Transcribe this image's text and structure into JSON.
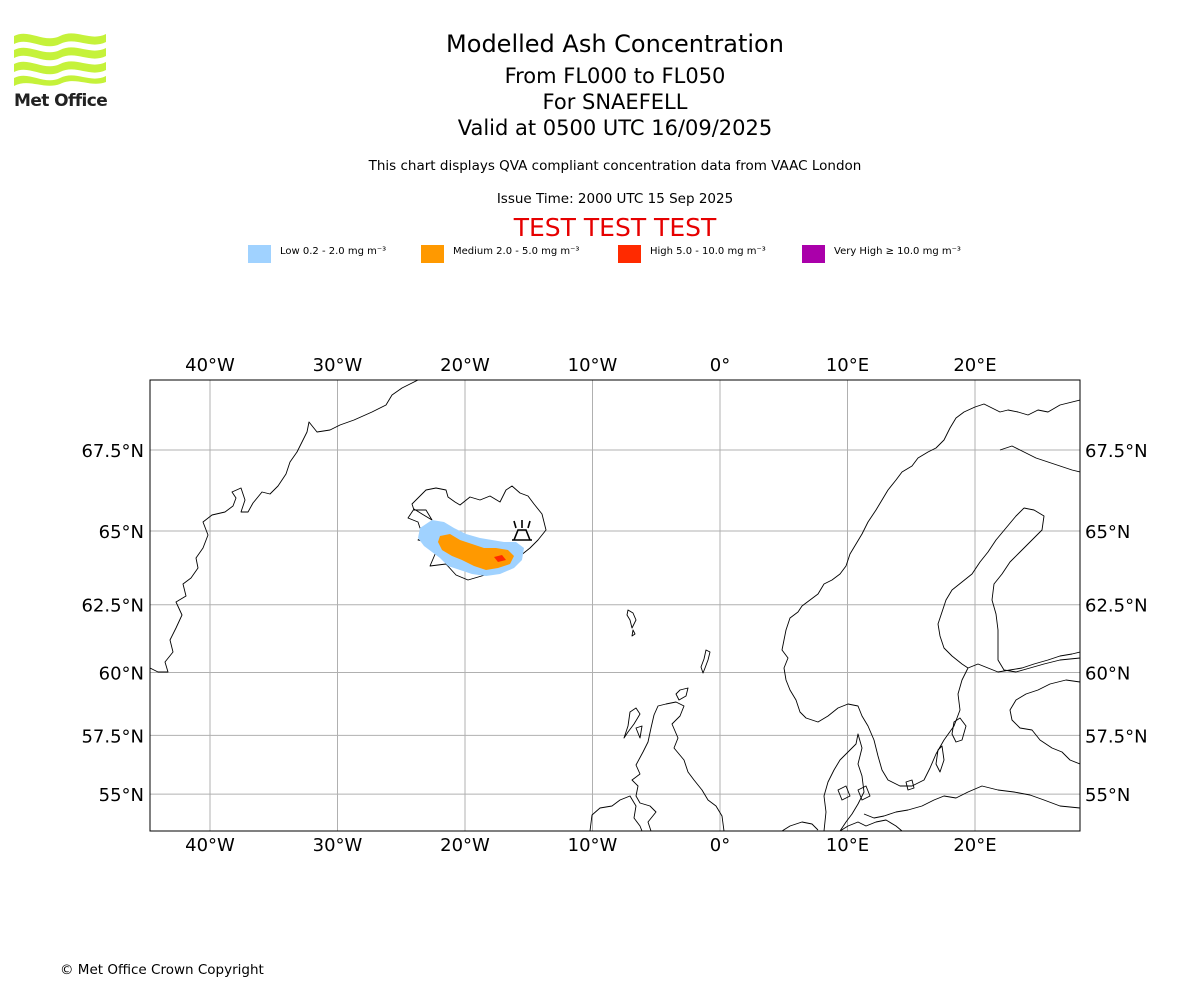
{
  "logo": {
    "text": "Met Office"
  },
  "header": {
    "title": "Modelled Ash Concentration",
    "levels": "From FL000 to FL050",
    "volcano": "For SNAEFELL",
    "valid": "Valid at 0500 UTC 16/09/2025",
    "description": "This chart displays QVA compliant concentration data from VAAC London",
    "issue_time": "Issue Time: 2000 UTC 15 Sep 2025",
    "test_banner": "TEST TEST TEST"
  },
  "legend": [
    {
      "label": "Low 0.2 - 2.0 mg m⁻³",
      "color": "#a0d2ff"
    },
    {
      "label": "Medium 2.0 - 5.0 mg m⁻³",
      "color": "#ff9900"
    },
    {
      "label": "High 5.0 - 10.0 mg m⁻³",
      "color": "#ff2a00"
    },
    {
      "label": "Very High ≥ 10.0 mg m⁻³",
      "color": "#aa00aa"
    }
  ],
  "map": {
    "extent": {
      "lon_min": -44.7,
      "lon_max": 28.2,
      "lat_min": 53.6,
      "lat_max": 69.7
    },
    "lon_ticks": [
      {
        "lon": -40,
        "label": "40°W"
      },
      {
        "lon": -30,
        "label": "30°W"
      },
      {
        "lon": -20,
        "label": "20°W"
      },
      {
        "lon": -10,
        "label": "10°W"
      },
      {
        "lon": 0,
        "label": "0°"
      },
      {
        "lon": 10,
        "label": "10°E"
      },
      {
        "lon": 20,
        "label": "20°E"
      }
    ],
    "lat_ticks": [
      {
        "lat": 67.5,
        "label": "67.5°N"
      },
      {
        "lat": 65,
        "label": "65°N"
      },
      {
        "lat": 62.5,
        "label": "62.5°N"
      },
      {
        "lat": 60,
        "label": "60°N"
      },
      {
        "lat": 57.5,
        "label": "57.5°N"
      },
      {
        "lat": 55,
        "label": "55°N"
      }
    ],
    "volcano_symbol": "volcano-icon",
    "ash_colors": {
      "low": "#a0d2ff",
      "medium": "#ff9900",
      "high": "#ff2a00"
    }
  },
  "footer": {
    "copyright": "© Met Office Crown Copyright"
  }
}
